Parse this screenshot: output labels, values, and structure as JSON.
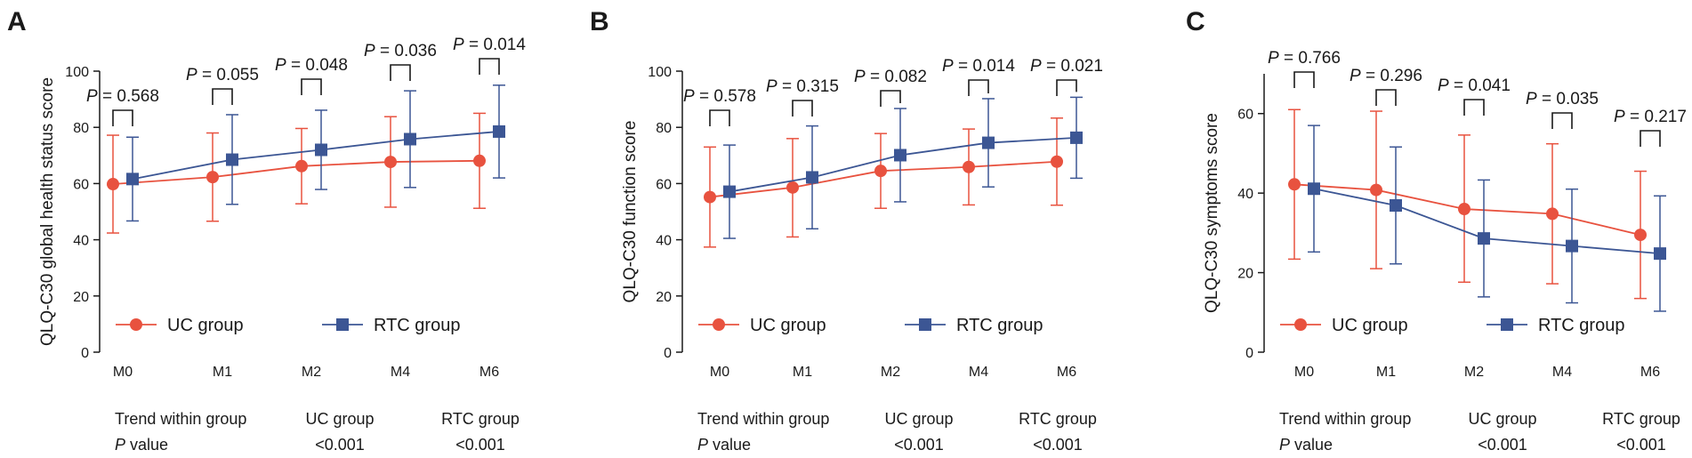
{
  "colors": {
    "uc": "#e8523f",
    "rtc": "#3c5694",
    "axis": "#1a1a1a"
  },
  "legend_uc": "UC group",
  "legend_rtc": "RTC group",
  "chart_data": [
    {
      "panel": "A",
      "type": "line",
      "ylabel": "QLQ-C30 global health status score",
      "categories": [
        "M0",
        "M1",
        "M2",
        "M4",
        "M6"
      ],
      "ylim": [
        0,
        100
      ],
      "yticks": [
        0,
        20,
        40,
        60,
        80,
        100
      ],
      "series": [
        {
          "name": "UC group",
          "values": [
            59.8,
            62.3,
            66.2,
            67.7,
            68.1
          ],
          "err_high": [
            77.2,
            78.0,
            79.6,
            83.8,
            85.0
          ],
          "err_low": [
            42.4,
            46.6,
            52.8,
            51.6,
            51.2
          ]
        },
        {
          "name": "RTC group",
          "values": [
            61.6,
            68.5,
            72.0,
            75.8,
            78.5
          ],
          "err_high": [
            76.5,
            84.5,
            86.1,
            93.0,
            95.0
          ],
          "err_low": [
            46.7,
            52.6,
            57.9,
            58.6,
            62.0
          ]
        }
      ],
      "pvalues": [
        "P = 0.568",
        "P = 0.055",
        "P = 0.048",
        "P = 0.036",
        "P = 0.014"
      ],
      "trend": {
        "label": "Trend within group",
        "plabel_italic": "P",
        "plabel_rest": " value",
        "uc_header": "UC group",
        "rtc_header": "RTC group",
        "uc_value": "<0.001",
        "rtc_value": "<0.001"
      }
    },
    {
      "panel": "B",
      "type": "line",
      "ylabel": "QLQ-C30 function score",
      "categories": [
        "M0",
        "M1",
        "M2",
        "M4",
        "M6"
      ],
      "ylim": [
        0,
        100
      ],
      "yticks": [
        0,
        20,
        40,
        60,
        80,
        100
      ],
      "series": [
        {
          "name": "UC group",
          "values": [
            55.2,
            58.6,
            64.5,
            65.9,
            67.8
          ],
          "err_high": [
            73.0,
            76.0,
            77.8,
            79.4,
            83.3
          ],
          "err_low": [
            37.4,
            41.0,
            51.2,
            52.4,
            52.3
          ]
        },
        {
          "name": "RTC group",
          "values": [
            57.1,
            62.2,
            70.1,
            74.5,
            76.3
          ],
          "err_high": [
            73.7,
            80.5,
            86.7,
            90.2,
            90.7
          ],
          "err_low": [
            40.5,
            43.9,
            53.5,
            58.8,
            61.9
          ]
        }
      ],
      "pvalues": [
        "P = 0.578",
        "P = 0.315",
        "P = 0.082",
        "P = 0.014",
        "P = 0.021"
      ],
      "trend": {
        "label": "Trend within group",
        "plabel_italic": "P",
        "plabel_rest": " value",
        "uc_header": "UC group",
        "rtc_header": "RTC group",
        "uc_value": "<0.001",
        "rtc_value": "<0.001"
      }
    },
    {
      "panel": "C",
      "type": "line",
      "ylabel": "QLQ-C30 symptoms score",
      "categories": [
        "M0",
        "M1",
        "M2",
        "M4",
        "M6"
      ],
      "ylim": [
        0,
        70
      ],
      "yticks": [
        0,
        20,
        40,
        60
      ],
      "series": [
        {
          "name": "UC group",
          "values": [
            42.2,
            40.8,
            36.0,
            34.8,
            29.5
          ],
          "err_high": [
            61.0,
            60.6,
            54.6,
            52.4,
            45.5
          ],
          "err_low": [
            23.4,
            21.0,
            17.6,
            17.2,
            13.5
          ]
        },
        {
          "name": "RTC group",
          "values": [
            41.1,
            36.9,
            28.6,
            26.7,
            24.8
          ],
          "err_high": [
            57.0,
            51.6,
            43.3,
            41.0,
            39.3
          ],
          "err_low": [
            25.2,
            22.2,
            13.9,
            12.4,
            10.3
          ]
        }
      ],
      "pvalues": [
        "P = 0.766",
        "P = 0.296",
        "P = 0.041",
        "P = 0.035",
        "P = 0.217"
      ],
      "trend": {
        "label": "Trend within group",
        "plabel_italic": "P",
        "plabel_rest": " value",
        "uc_header": "UC group",
        "rtc_header": "RTC group",
        "uc_value": "<0.001",
        "rtc_value": "<0.001"
      }
    }
  ]
}
